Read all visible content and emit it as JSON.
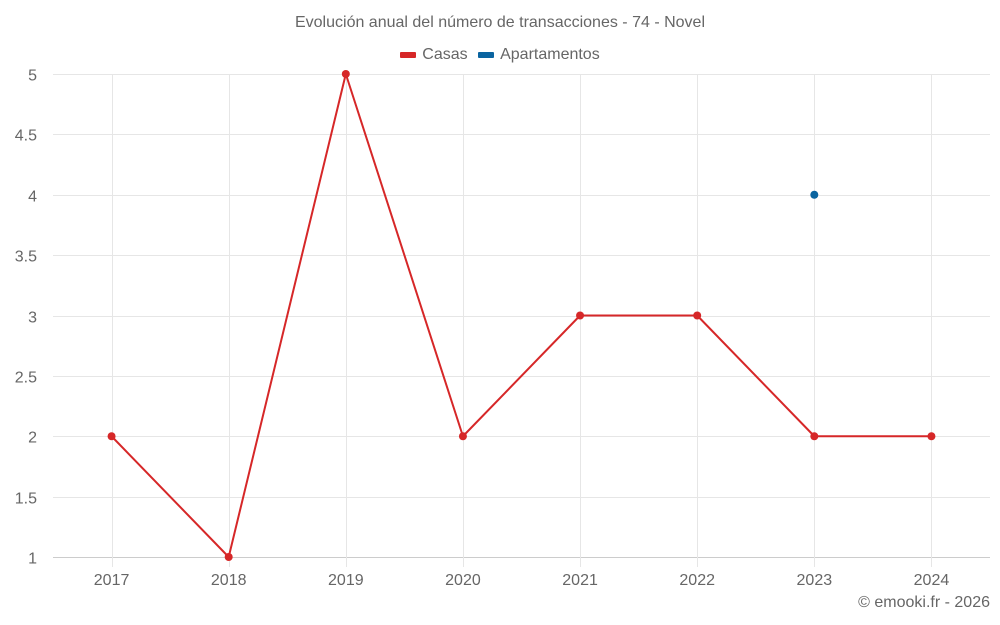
{
  "title": "Evolución anual del número de transacciones - 74 - Novel",
  "legend": [
    {
      "label": "Casas",
      "color": "#d62728"
    },
    {
      "label": "Apartamentos",
      "color": "#0a64a0"
    }
  ],
  "credit": "© emooki.fr - 2026",
  "chart_data": {
    "type": "line",
    "title": "Evolución anual del número de transacciones - 74 - Novel",
    "xlabel": "",
    "ylabel": "",
    "categories": [
      "2017",
      "2018",
      "2019",
      "2020",
      "2021",
      "2022",
      "2023",
      "2024"
    ],
    "series": [
      {
        "name": "Casas",
        "color": "#d62728",
        "values": [
          2,
          1,
          5,
          2,
          3,
          3,
          2,
          2
        ]
      },
      {
        "name": "Apartamentos",
        "color": "#0a64a0",
        "values": [
          null,
          null,
          null,
          null,
          null,
          null,
          4,
          null
        ]
      }
    ],
    "ylim": [
      1,
      5
    ],
    "yticks": [
      "1",
      "1.5",
      "2",
      "2.5",
      "3",
      "3.5",
      "4",
      "4.5",
      "5"
    ],
    "grid": true,
    "legend_position": "top"
  }
}
